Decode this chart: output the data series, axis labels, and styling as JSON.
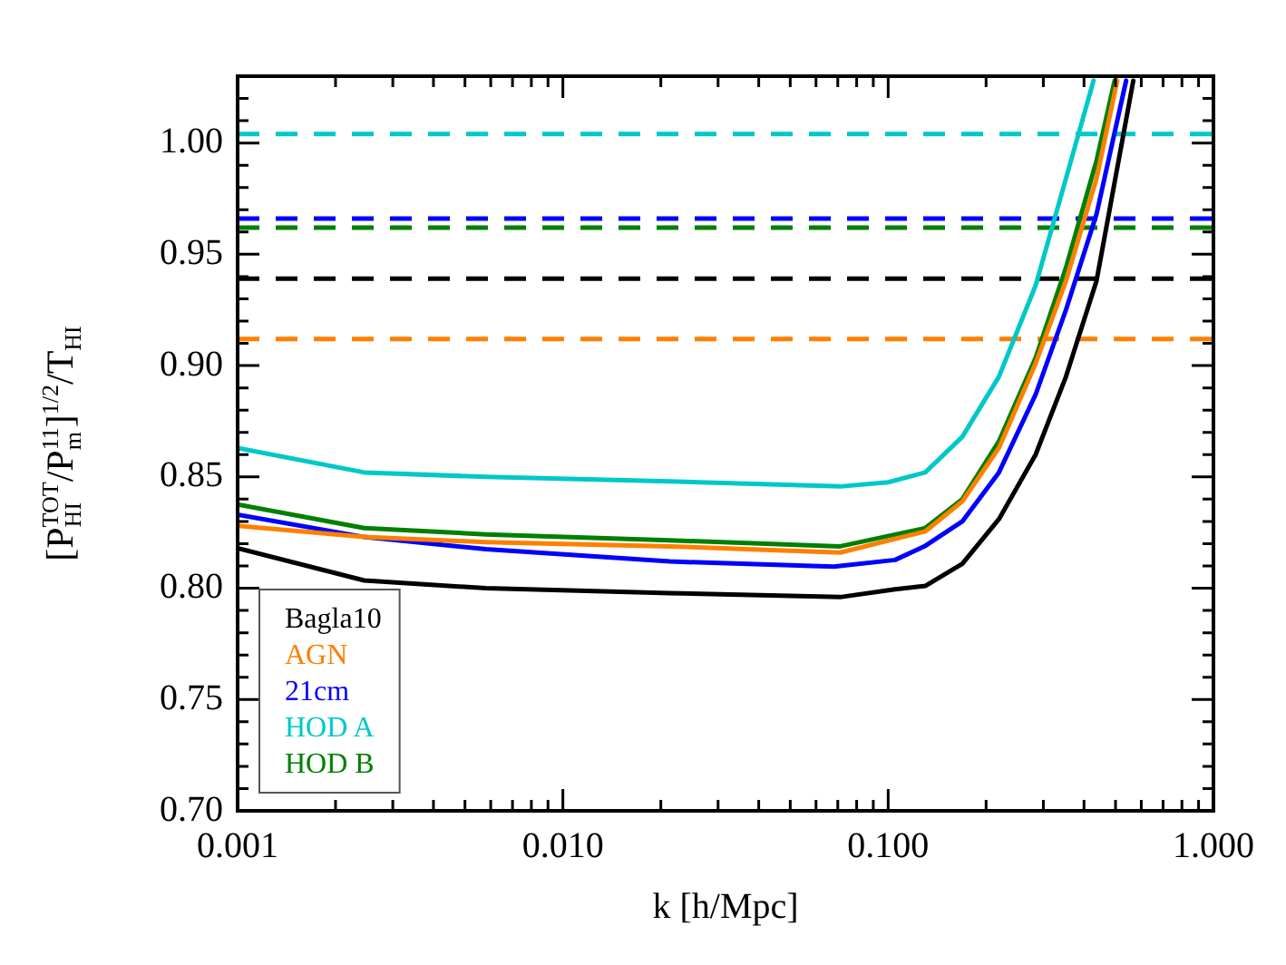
{
  "chart_data": {
    "type": "line",
    "xlabel": "k [h/Mpc]",
    "ylabel": "[P$_{HI}$$^{TOT}$/P$_{m}$$^{11}$]$^{1/2}$/T$_{HI}$",
    "log": "x",
    "grid": false,
    "legend": "bottom left",
    "marker": "none",
    "line_style": "solid",
    "xlim": [
      0.001,
      1
    ],
    "xticks": [
      {
        "value": 0.001,
        "label": "0.001"
      },
      {
        "value": 0.002,
        "label": null
      },
      {
        "value": 0.003,
        "label": null
      },
      {
        "value": 0.004,
        "label": null
      },
      {
        "value": 0.005,
        "label": null
      },
      {
        "value": 0.006,
        "label": null
      },
      {
        "value": 0.007,
        "label": null
      },
      {
        "value": 0.008,
        "label": null
      },
      {
        "value": 0.009,
        "label": null
      },
      {
        "value": 0.01,
        "label": "0.010"
      },
      {
        "value": 0.02,
        "label": null
      },
      {
        "value": 0.03,
        "label": null
      },
      {
        "value": 0.04,
        "label": null
      },
      {
        "value": 0.05,
        "label": null
      },
      {
        "value": 0.06,
        "label": null
      },
      {
        "value": 0.07,
        "label": null
      },
      {
        "value": 0.08,
        "label": null
      },
      {
        "value": 0.09,
        "label": null
      },
      {
        "value": 0.1,
        "label": "0.100"
      },
      {
        "value": 0.2,
        "label": null
      },
      {
        "value": 0.3,
        "label": null
      },
      {
        "value": 0.4,
        "label": null
      },
      {
        "value": 0.5,
        "label": null
      },
      {
        "value": 0.6,
        "label": null
      },
      {
        "value": 0.7,
        "label": null
      },
      {
        "value": 0.8,
        "label": null
      },
      {
        "value": 0.9,
        "label": null
      },
      {
        "value": 1,
        "label": "1.000"
      }
    ],
    "ylim": [
      0.7,
      1.03
    ],
    "yticks": [
      {
        "value": 0.7,
        "label": "0.70"
      },
      {
        "value": 0.71,
        "label": null
      },
      {
        "value": 0.72,
        "label": null
      },
      {
        "value": 0.73,
        "label": null
      },
      {
        "value": 0.74,
        "label": null
      },
      {
        "value": 0.75,
        "label": "0.75"
      },
      {
        "value": 0.76,
        "label": null
      },
      {
        "value": 0.77,
        "label": null
      },
      {
        "value": 0.78,
        "label": null
      },
      {
        "value": 0.79,
        "label": null
      },
      {
        "value": 0.8,
        "label": "0.80"
      },
      {
        "value": 0.81,
        "label": null
      },
      {
        "value": 0.82,
        "label": null
      },
      {
        "value": 0.83,
        "label": null
      },
      {
        "value": 0.84,
        "label": null
      },
      {
        "value": 0.85,
        "label": "0.85"
      },
      {
        "value": 0.86,
        "label": null
      },
      {
        "value": 0.87,
        "label": null
      },
      {
        "value": 0.88,
        "label": null
      },
      {
        "value": 0.89,
        "label": null
      },
      {
        "value": 0.9,
        "label": "0.90"
      },
      {
        "value": 0.91,
        "label": null
      },
      {
        "value": 0.92,
        "label": null
      },
      {
        "value": 0.93,
        "label": null
      },
      {
        "value": 0.94,
        "label": null
      },
      {
        "value": 0.95,
        "label": "0.95"
      },
      {
        "value": 0.96,
        "label": null
      },
      {
        "value": 0.97,
        "label": null
      },
      {
        "value": 0.98,
        "label": null
      },
      {
        "value": 0.99,
        "label": null
      },
      {
        "value": 1,
        "label": "1.00"
      },
      {
        "value": 1.01,
        "label": null
      },
      {
        "value": 1.02,
        "label": null
      }
    ],
    "series": [
      {
        "name": "Bagla10",
        "color": "#000000",
        "x": [
          0.001,
          0.00245,
          0.0058,
          0.0213,
          0.0712,
          0.105,
          0.13,
          0.169,
          0.219,
          0.284,
          0.352,
          0.437,
          0.567
        ],
        "values": [
          0.818,
          0.8035,
          0.8,
          0.7978,
          0.796,
          0.7995,
          0.801,
          0.811,
          0.831,
          0.86,
          0.895,
          0.938,
          1.028
        ]
      },
      {
        "name": "AGN",
        "color": "#ff7f00",
        "x": [
          0.001,
          0.00245,
          0.0058,
          0.0213,
          0.0712,
          0.13,
          0.169,
          0.219,
          0.284,
          0.352,
          0.437,
          0.506
        ],
        "values": [
          0.828,
          0.823,
          0.8207,
          0.8188,
          0.816,
          0.8255,
          0.839,
          0.863,
          0.901,
          0.938,
          0.984,
          1.028
        ]
      },
      {
        "name": "21cm",
        "color": "#0000ff",
        "x": [
          0.001,
          0.00245,
          0.0058,
          0.0213,
          0.068,
          0.105,
          0.13,
          0.169,
          0.219,
          0.284,
          0.352,
          0.437,
          0.539
        ],
        "values": [
          0.833,
          0.823,
          0.8175,
          0.812,
          0.8097,
          0.8127,
          0.819,
          0.83,
          0.852,
          0.887,
          0.925,
          0.968,
          1.028
        ]
      },
      {
        "name": "HOD A",
        "color": "#00c8c8",
        "x": [
          0.001,
          0.00245,
          0.0058,
          0.0213,
          0.0712,
          0.1,
          0.13,
          0.169,
          0.219,
          0.284,
          0.352,
          0.428
        ],
        "values": [
          0.863,
          0.852,
          0.85,
          0.848,
          0.8457,
          0.8476,
          0.852,
          0.868,
          0.895,
          0.936,
          0.984,
          1.028
        ]
      },
      {
        "name": "HOD B",
        "color": "#008000",
        "x": [
          0.001,
          0.00245,
          0.0058,
          0.0213,
          0.0712,
          0.13,
          0.169,
          0.219,
          0.284,
          0.352,
          0.437,
          0.497
        ],
        "values": [
          0.8376,
          0.827,
          0.8242,
          0.8215,
          0.8188,
          0.827,
          0.84,
          0.866,
          0.9035,
          0.944,
          0.992,
          1.028
        ]
      }
    ],
    "ref_lines": [
      {
        "axis": "y",
        "value": 1.004,
        "color": "#00c8c8",
        "line_style": "dashed"
      },
      {
        "axis": "y",
        "value": 0.966,
        "color": "#0000ff",
        "line_style": "dashed"
      },
      {
        "axis": "y",
        "value": 0.962,
        "color": "#008000",
        "line_style": "dashed"
      },
      {
        "axis": "y",
        "value": 0.939,
        "color": "#000000",
        "line_style": "dashed"
      },
      {
        "axis": "y",
        "value": 0.912,
        "color": "#ff7f00",
        "line_style": "dashed"
      }
    ]
  }
}
